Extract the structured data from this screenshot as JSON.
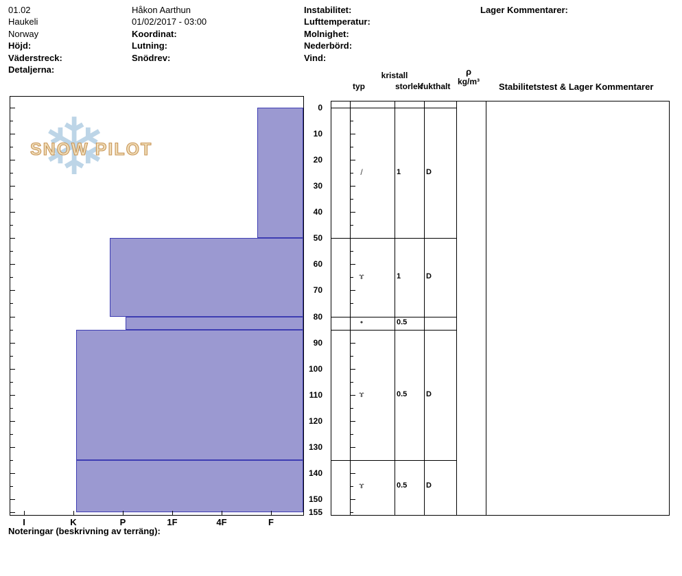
{
  "header": {
    "col1": [
      "01.02",
      "Haukeli",
      "Norway",
      "Höjd:",
      "Väderstreck:",
      "Detaljerna:"
    ],
    "col2": [
      "Håkon Aarthun",
      "01/02/2017 - 03:00",
      "Koordinat:",
      "Lutning:",
      "Snödrev:"
    ],
    "col3": [
      "Instabilitet:",
      "Lufttemperatur:",
      "Molnighet:",
      "Nederbörd:",
      "Vind:"
    ],
    "col4": [
      "Lager Kommentarer:"
    ]
  },
  "logo": {
    "snowflake": "❄",
    "text": "SNOW PILOT"
  },
  "table_headers": {
    "kristall": "kristall",
    "typ": "typ",
    "storlek": "storlek",
    "fukthalt": "fukthalt",
    "rho": "ρ",
    "kg_m3": "kg/m³",
    "stability": "Stabilitetstest & Lager Kommentarer"
  },
  "footer": {
    "notes_label": "Noteringar (beskrivning av terräng):"
  },
  "chart_data": {
    "type": "bar",
    "title": "",
    "depth_axis": {
      "unit": "cm",
      "min": 0,
      "max": 155,
      "major_ticks": [
        0,
        10,
        20,
        30,
        40,
        50,
        60,
        70,
        80,
        90,
        100,
        110,
        120,
        130,
        140,
        150,
        155
      ]
    },
    "hardness_axis": {
      "labels": [
        "I",
        "K",
        "P",
        "1F",
        "4F",
        "F"
      ]
    },
    "bar_color": "#9b99d1",
    "bar_border_color": "#3d3cb2",
    "layers": [
      {
        "top_cm": 0,
        "bottom_cm": 50,
        "hardness": "F+",
        "hardness_u": 4.72,
        "grain_symbol": "/",
        "grain_size_mm": "1",
        "moisture": "D"
      },
      {
        "top_cm": 50,
        "bottom_cm": 80,
        "hardness": "P+",
        "hardness_u": 1.74,
        "grain_symbol": "ɤ",
        "grain_size_mm": "1",
        "moisture": "D"
      },
      {
        "top_cm": 80,
        "bottom_cm": 85,
        "hardness": "P",
        "hardness_u": 2.06,
        "grain_symbol": "•",
        "grain_size_mm": "0.5",
        "moisture": ""
      },
      {
        "top_cm": 85,
        "bottom_cm": 135,
        "hardness": "K",
        "hardness_u": 1.06,
        "grain_symbol": "ɤ",
        "grain_size_mm": "0.5",
        "moisture": "D"
      },
      {
        "top_cm": 135,
        "bottom_cm": 155,
        "hardness": "K",
        "hardness_u": 1.06,
        "grain_symbol": "ɤ",
        "grain_size_mm": "0.5",
        "moisture": "D"
      }
    ]
  }
}
